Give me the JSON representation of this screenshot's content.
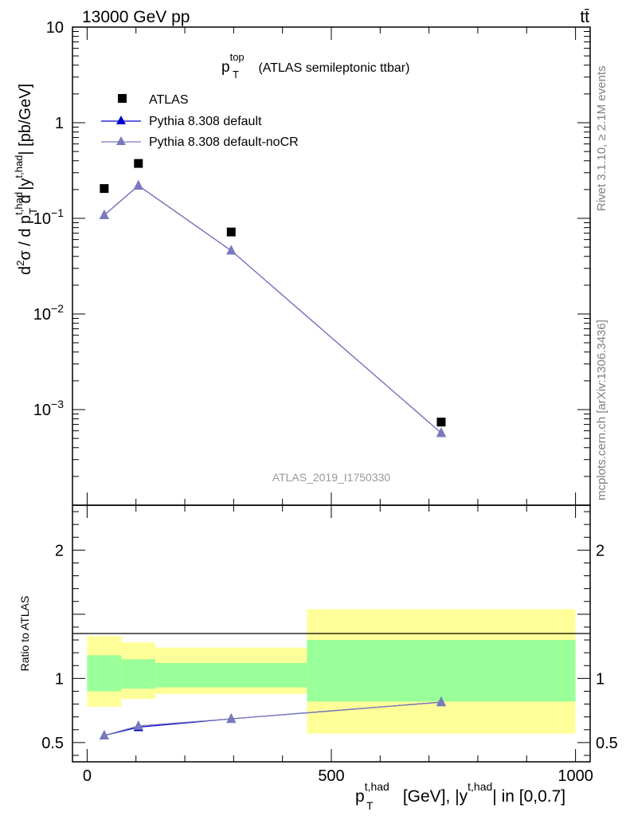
{
  "header": {
    "left": "13000 GeV pp",
    "right": "tt̄"
  },
  "side_labels": {
    "rivet": "Rivet 3.1.10, ≥ 2.1M events",
    "source": "mcplots.cern.ch [arXiv:1306.3436]"
  },
  "watermark": "ATLAS_2019_I1750330",
  "plot_title": {
    "main": "p",
    "sub": "T",
    "sup": "top",
    "rest": " (ATLAS semileptonic ttbar)"
  },
  "y_label": {
    "part1": "d",
    "part1_sup": "2",
    "part2": "σ  /  d p",
    "part2_sup": "t,had",
    "part2_sub": "T",
    "part3": " d |y",
    "part3_sup": "t,had",
    "part4": "| [pb/GeV]"
  },
  "x_label": {
    "p": "p",
    "p_sup": "t,had",
    "p_sub": "T",
    "rest1": " [GeV], |y",
    "rest_sup": "t,had",
    "rest2": "| in [0,0.7]"
  },
  "ratio_ylabel": "Ratio to ATLAS",
  "legend": [
    {
      "label": "ATLAS",
      "marker": "square",
      "color": "#000000"
    },
    {
      "label": "Pythia 8.308 default",
      "marker": "triangle",
      "color": "#0000cc"
    },
    {
      "label": "Pythia 8.308 default-noCR",
      "marker": "triangle",
      "color": "#7a7aba"
    }
  ],
  "colors": {
    "band_inner": "#99ff99",
    "band_outer": "#ffff99",
    "mc1": "#0000cc",
    "mc2": "#7a7aba"
  },
  "chart_data": [
    {
      "type": "scatter",
      "panel": "main",
      "yscale": "log",
      "ylim": [
        0.0001,
        10
      ],
      "xlim": [
        -30,
        1030
      ],
      "yticks": [
        {
          "value": 0.001,
          "base": "10",
          "exp": "−3"
        },
        {
          "value": 0.01,
          "base": "10",
          "exp": "−2"
        },
        {
          "value": 0.1,
          "base": "10",
          "exp": "−1"
        },
        {
          "value": 1,
          "label": "1"
        },
        {
          "value": 10,
          "label": "10"
        }
      ],
      "series": [
        {
          "name": "ATLAS",
          "x": [
            35,
            105,
            295,
            725
          ],
          "values": [
            0.205,
            0.375,
            0.072,
            0.00074
          ]
        },
        {
          "name": "Pythia 8.308 default",
          "x": [
            35,
            105,
            295,
            725
          ],
          "values": [
            0.108,
            0.22,
            0.046,
            0.00057
          ]
        },
        {
          "name": "Pythia 8.308 default-noCR",
          "x": [
            35,
            105,
            295,
            725
          ],
          "values": [
            0.108,
            0.22,
            0.046,
            0.00057
          ]
        }
      ]
    },
    {
      "type": "line",
      "panel": "ratio",
      "ylim": [
        0.35,
        2.35
      ],
      "xlim": [
        -30,
        1030
      ],
      "yticks": [
        {
          "value": 0.5,
          "label": "0.5"
        },
        {
          "value": 1,
          "label": "1"
        },
        {
          "value": 2,
          "label": "2"
        }
      ],
      "xticks": [
        {
          "value": 0,
          "label": "0"
        },
        {
          "value": 500,
          "label": "500"
        },
        {
          "value": 1000,
          "label": "1000"
        }
      ],
      "bins": [
        {
          "lo": 0,
          "hi": 70,
          "inner": [
            0.9,
            1.18
          ],
          "outer": [
            0.78,
            1.33
          ]
        },
        {
          "lo": 70,
          "hi": 140,
          "inner": [
            0.92,
            1.15
          ],
          "outer": [
            0.84,
            1.28
          ]
        },
        {
          "lo": 140,
          "hi": 450,
          "inner": [
            0.93,
            1.12
          ],
          "outer": [
            0.88,
            1.24
          ]
        },
        {
          "lo": 450,
          "hi": 1000,
          "inner": [
            0.82,
            1.3
          ],
          "outer": [
            0.57,
            1.54
          ]
        }
      ],
      "series": [
        {
          "name": "Pythia 8.308 default",
          "x": [
            35,
            105,
            295,
            725
          ],
          "values": [
            0.555,
            0.62,
            0.685,
            0.815
          ]
        },
        {
          "name": "Pythia 8.308 default-noCR",
          "x": [
            35,
            105,
            295,
            725
          ],
          "values": [
            0.555,
            0.63,
            0.685,
            0.815
          ]
        }
      ]
    }
  ]
}
